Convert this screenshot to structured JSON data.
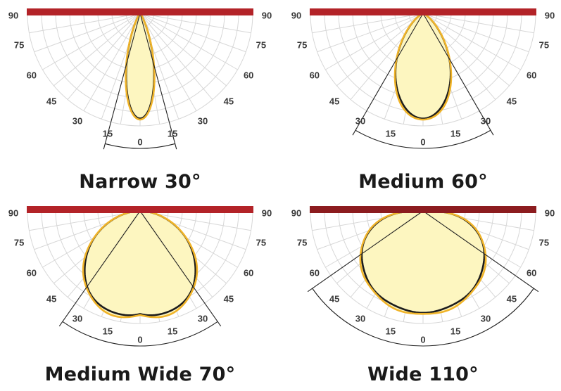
{
  "angle_labels": [
    "0",
    "15",
    "30",
    "45",
    "60",
    "75",
    "90"
  ],
  "colors": {
    "bar": "#b32328",
    "bar_dark": "#8c1c1f",
    "grid": "#d7d7d7",
    "fill": "#fdf6c0",
    "outline_light": "#f0b429",
    "outline_dark": "#1c1c1c",
    "text": "#1a1a1a"
  },
  "panels": [
    {
      "id": "narrow",
      "title": "Narrow 30°",
      "beam_angle": 30
    },
    {
      "id": "medium",
      "title": "Medium 60°",
      "beam_angle": 60
    },
    {
      "id": "medium-wide",
      "title": "Medium Wide 70°",
      "beam_angle": 70
    },
    {
      "id": "wide",
      "title": "Wide 110°",
      "beam_angle": 110
    }
  ]
}
